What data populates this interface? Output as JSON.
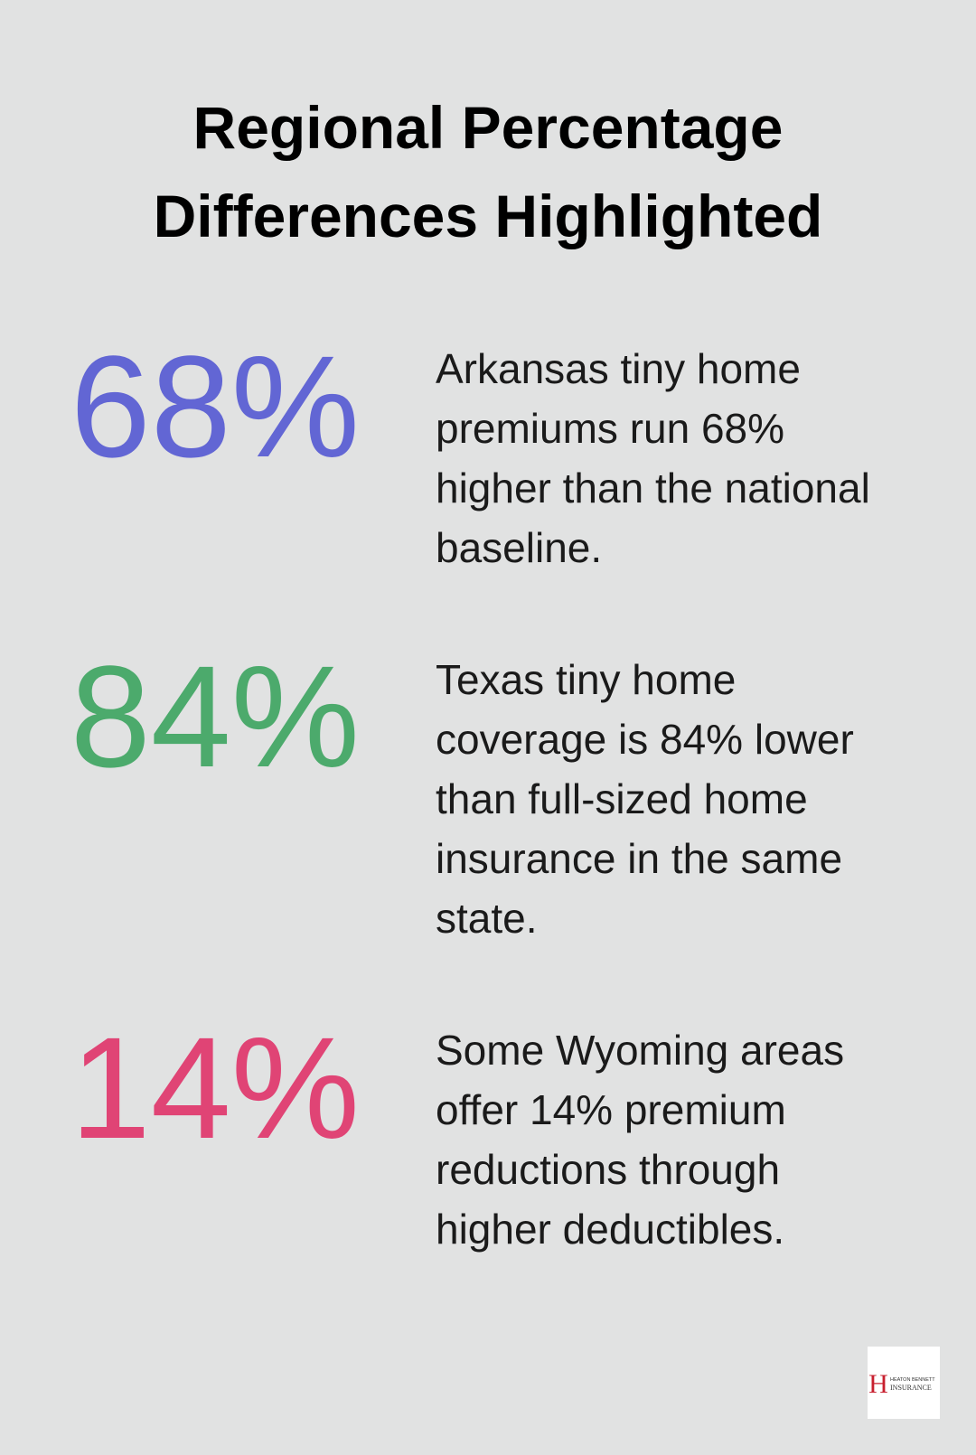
{
  "title": [
    "Regional Percentage",
    "Differences Highlighted"
  ],
  "stats": [
    {
      "value": "68%",
      "color": "#6266d4",
      "description": [
        "Arkansas tiny home",
        "premiums run 68%",
        "higher than the national",
        "baseline."
      ]
    },
    {
      "value": "84%",
      "color": "#4caa6c",
      "description": [
        "Texas tiny home",
        "coverage is 84% lower",
        "than full-sized home",
        "insurance in the same",
        "state."
      ]
    },
    {
      "value": "14%",
      "color": "#e04475",
      "description": [
        "Some Wyoming areas",
        "offer 14% premium",
        "reductions through",
        "higher deductibles."
      ]
    }
  ],
  "logo": {
    "letter": "H",
    "name": "HEATON BENNETT",
    "word": "INSURANCE"
  }
}
